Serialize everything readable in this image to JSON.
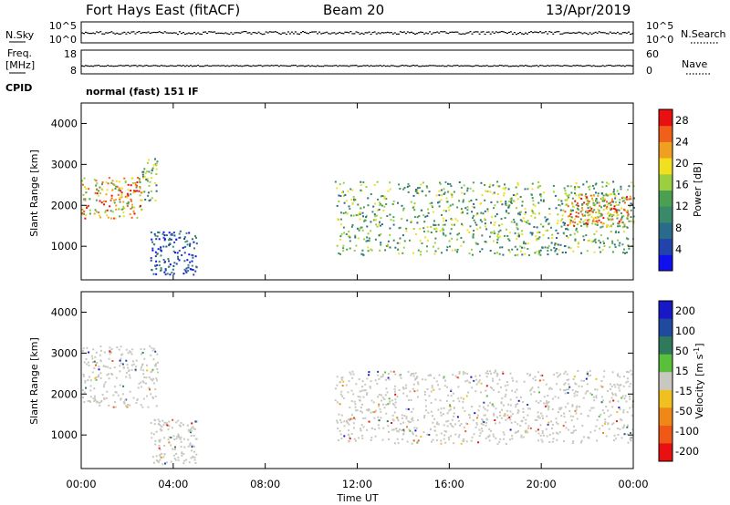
{
  "header": {
    "station": "Fort Hays East (fitACF)",
    "beam": "Beam 20",
    "date": "13/Apr/2019"
  },
  "noise_panel": {
    "left_label": "N.Sky",
    "right_label": "N.Search",
    "left_ticks": [
      "10^5",
      "10^0"
    ],
    "right_ticks": [
      "10^5",
      "10^0"
    ]
  },
  "freq_panel": {
    "left_label_1": "Freq.",
    "left_label_2": "[MHz]",
    "right_label": "Nave",
    "left_ticks": [
      "18",
      "8"
    ],
    "right_ticks": [
      "60",
      "0"
    ],
    "cpid_label": "CPID",
    "cpid_text": "normal (fast) 151 IF"
  },
  "chart_data": [
    {
      "type": "heatmap",
      "name": "power",
      "ylabel": "Slant Range [km]",
      "ylim": [
        180,
        4500
      ],
      "yticks": [
        "1000",
        "2000",
        "3000",
        "4000"
      ],
      "xticks": [
        "00:00",
        "04:00",
        "08:00",
        "12:00",
        "16:00",
        "20:00",
        "00:00"
      ],
      "xlim_hours": [
        0,
        24
      ],
      "colorbar": {
        "label": "Power [dB]",
        "ticks": [
          "4",
          "8",
          "12",
          "16",
          "20",
          "24",
          "28"
        ],
        "range": [
          0,
          30
        ]
      },
      "regions": [
        {
          "t": [
            0.0,
            2.6
          ],
          "r": [
            1700,
            2700
          ],
          "level": "high"
        },
        {
          "t": [
            2.6,
            3.3
          ],
          "r": [
            2100,
            3200
          ],
          "level": "mid"
        },
        {
          "t": [
            3.0,
            5.0
          ],
          "r": [
            300,
            1400
          ],
          "level": "low"
        },
        {
          "t": [
            11.0,
            24.0
          ],
          "r": [
            800,
            2600
          ],
          "level": "mid"
        },
        {
          "t": [
            21.0,
            24.0
          ],
          "r": [
            1500,
            2300
          ],
          "level": "high"
        }
      ]
    },
    {
      "type": "heatmap",
      "name": "velocity",
      "ylabel": "Slant Range [km]",
      "xlabel": "Time UT",
      "ylim": [
        180,
        4500
      ],
      "yticks": [
        "1000",
        "2000",
        "3000",
        "4000"
      ],
      "xticks": [
        "00:00",
        "04:00",
        "08:00",
        "12:00",
        "16:00",
        "20:00",
        "00:00"
      ],
      "xlim_hours": [
        0,
        24
      ],
      "colorbar": {
        "label": "Velocity [m s-1]",
        "ticks": [
          "200",
          "100",
          "50",
          "15",
          "-15",
          "-50",
          "-100",
          "-200"
        ],
        "range": [
          -250,
          250
        ]
      },
      "regions": [
        {
          "t": [
            0.0,
            3.3
          ],
          "r": [
            1700,
            3200
          ],
          "level": "ground"
        },
        {
          "t": [
            3.0,
            5.0
          ],
          "r": [
            300,
            1400
          ],
          "level": "ground"
        },
        {
          "t": [
            11.0,
            24.0
          ],
          "r": [
            800,
            2600
          ],
          "level": "ground"
        }
      ]
    }
  ],
  "colors": {
    "power_scale": [
      "#1010ee",
      "#2244aa",
      "#2a6a8a",
      "#3a8a6a",
      "#4aa050",
      "#9ad040",
      "#f0e020",
      "#f0a020",
      "#f06018",
      "#e81010"
    ],
    "velocity_scale": [
      "#1818c8",
      "#204aa0",
      "#2e7a5a",
      "#5abf3a",
      "#c8c8c0",
      "#f0c020",
      "#f08818",
      "#f05818",
      "#e81010"
    ],
    "ground": "#c8c8c0"
  }
}
